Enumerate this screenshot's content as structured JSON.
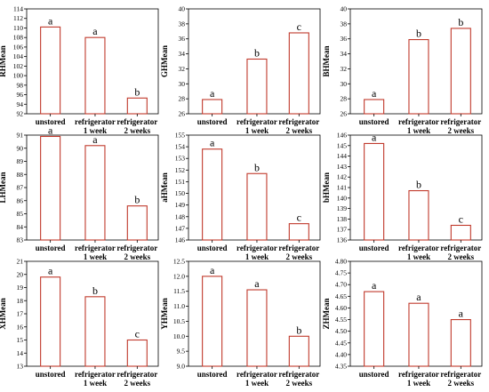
{
  "chart_data": [
    {
      "type": "bar",
      "ylabel": "RHMean",
      "categories": [
        "unstored",
        "refrigerator 1 week",
        "refrigerator 2 weeks"
      ],
      "values": [
        110.2,
        108.0,
        95.3
      ],
      "ylim": [
        92,
        114
      ],
      "yticks": [
        92,
        94,
        96,
        98,
        100,
        102,
        104,
        106,
        108,
        110,
        112,
        114
      ],
      "tick_decimals": 0,
      "labels": [
        "a",
        "a",
        "b"
      ],
      "bar_color": "#c0392b"
    },
    {
      "type": "bar",
      "ylabel": "GHMean",
      "categories": [
        "unstored",
        "refrigerator 1 week",
        "refrigerator 2 weeks"
      ],
      "values": [
        27.9,
        33.3,
        36.8
      ],
      "ylim": [
        26,
        40
      ],
      "yticks": [
        26,
        28,
        30,
        32,
        34,
        36,
        38,
        40
      ],
      "tick_decimals": 0,
      "labels": [
        "a",
        "b",
        "c"
      ],
      "bar_color": "#c0392b"
    },
    {
      "type": "bar",
      "ylabel": "BHMean",
      "categories": [
        "unstored",
        "refrigerator 1 week",
        "refrigerator 2 weeks"
      ],
      "values": [
        27.9,
        35.9,
        37.4
      ],
      "ylim": [
        26,
        40
      ],
      "yticks": [
        26,
        28,
        30,
        32,
        34,
        36,
        38,
        40
      ],
      "tick_decimals": 0,
      "labels": [
        "a",
        "b",
        "b"
      ],
      "bar_color": "#c0392b"
    },
    {
      "type": "bar",
      "ylabel": "LHMean",
      "categories": [
        "unstored",
        "refrigerator 1 week",
        "refrigerator 2 weeks"
      ],
      "values": [
        90.9,
        90.2,
        85.6
      ],
      "ylim": [
        83,
        91
      ],
      "yticks": [
        83,
        84,
        85,
        86,
        87,
        88,
        89,
        90,
        91
      ],
      "tick_decimals": 0,
      "labels": [
        "a",
        "a",
        "b"
      ],
      "bar_color": "#c0392b"
    },
    {
      "type": "bar",
      "ylabel": "aHMean",
      "categories": [
        "unstored",
        "refrigerator 1 week",
        "refrigerator 2 weeks"
      ],
      "values": [
        153.8,
        151.7,
        147.4
      ],
      "ylim": [
        146,
        155
      ],
      "yticks": [
        146,
        147,
        148,
        149,
        150,
        151,
        152,
        153,
        154,
        155
      ],
      "tick_decimals": 0,
      "labels": [
        "a",
        "b",
        "c"
      ],
      "bar_color": "#c0392b"
    },
    {
      "type": "bar",
      "ylabel": "bHMean",
      "categories": [
        "unstored",
        "refrigerator 1 week",
        "refrigerator 2 weeks"
      ],
      "values": [
        145.2,
        140.7,
        137.4
      ],
      "ylim": [
        136,
        146
      ],
      "yticks": [
        136,
        137,
        138,
        139,
        140,
        141,
        142,
        143,
        144,
        145,
        146
      ],
      "tick_decimals": 0,
      "labels": [
        "a",
        "b",
        "c"
      ],
      "bar_color": "#c0392b"
    },
    {
      "type": "bar",
      "ylabel": "XHMean",
      "categories": [
        "unstored",
        "refrigerator 1 week",
        "refrigerator 2 weeks"
      ],
      "values": [
        19.8,
        18.3,
        15.0
      ],
      "ylim": [
        13,
        21
      ],
      "yticks": [
        13,
        14,
        15,
        16,
        17,
        18,
        19,
        20,
        21
      ],
      "tick_decimals": 0,
      "labels": [
        "a",
        "b",
        "c"
      ],
      "bar_color": "#c0392b"
    },
    {
      "type": "bar",
      "ylabel": "YHMean",
      "categories": [
        "unstored",
        "refrigerator 1 week",
        "refrigerator 2 weeks"
      ],
      "values": [
        12.0,
        11.55,
        10.0
      ],
      "ylim": [
        9.0,
        12.5
      ],
      "yticks": [
        9.0,
        9.5,
        10.0,
        10.5,
        11.0,
        11.5,
        12.0,
        12.5
      ],
      "tick_decimals": 1,
      "labels": [
        "a",
        "a",
        "b"
      ],
      "bar_color": "#c0392b"
    },
    {
      "type": "bar",
      "ylabel": "ZHMean",
      "categories": [
        "unstored",
        "refrigerator 1 week",
        "refrigerator 2 weeks"
      ],
      "values": [
        4.67,
        4.62,
        4.55
      ],
      "ylim": [
        4.35,
        4.8
      ],
      "yticks": [
        4.35,
        4.4,
        4.45,
        4.5,
        4.55,
        4.6,
        4.65,
        4.7,
        4.75,
        4.8
      ],
      "tick_decimals": 2,
      "labels": [
        "a",
        "a",
        "a"
      ],
      "bar_color": "#c0392b"
    }
  ]
}
